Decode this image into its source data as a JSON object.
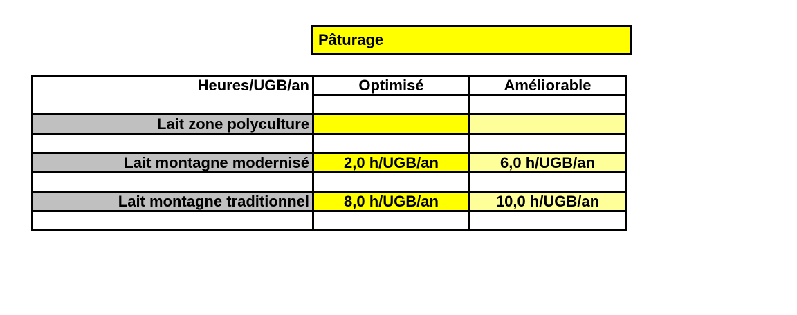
{
  "title": {
    "text": "Pâturage",
    "color": "#ffff00"
  },
  "table": {
    "header": {
      "label": "Heures/UGB/an",
      "columns": [
        "Optimisé",
        "Améliorable"
      ]
    },
    "rows": [
      {
        "label": "Lait zone polyculture",
        "values": [
          "",
          ""
        ]
      },
      {
        "label": "Lait montagne modernisé",
        "values": [
          "2,0 h/UGB/an",
          "6,0 h/UGB/an"
        ]
      },
      {
        "label": "Lait montagne traditionnel",
        "values": [
          "8,0 h/UGB/an",
          "10,0 h/UGB/an"
        ]
      }
    ],
    "colors": {
      "label_fill": "#c0c0c0",
      "optimise_fill": "#ffff00",
      "ameliorable_fill": "#ffff99"
    }
  }
}
